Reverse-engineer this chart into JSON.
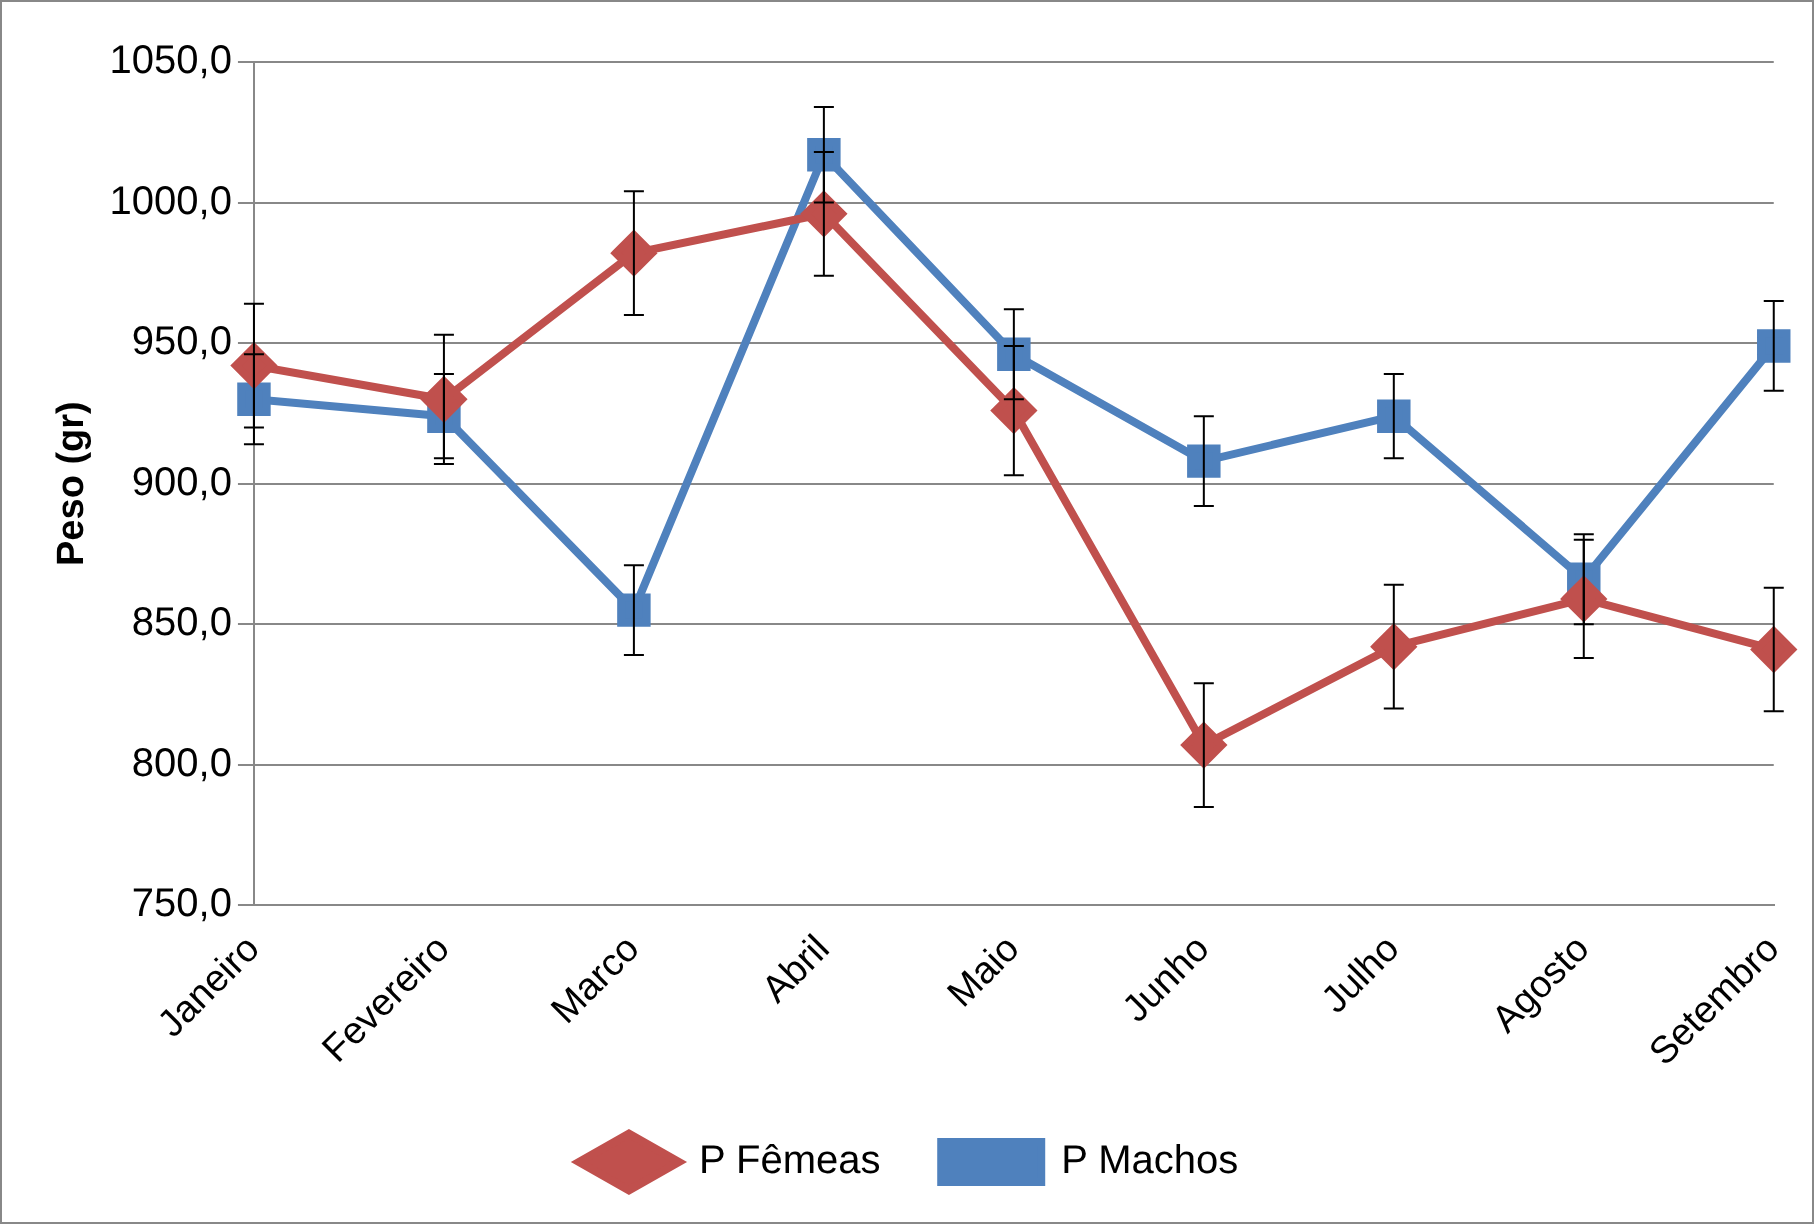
{
  "chart_data": {
    "type": "line",
    "ylabel": "Peso (gr)",
    "categories": [
      "Janeiro",
      "Fevereiro",
      "Marco",
      "Abril",
      "Maio",
      "Junho",
      "Julho",
      "Agosto",
      "Setembro"
    ],
    "series": [
      {
        "name": "P Fêmeas",
        "color": "#c0504d",
        "marker": "diamond",
        "values": [
          942,
          930,
          982,
          996,
          926,
          807,
          842,
          859,
          841
        ],
        "errors": [
          22,
          23,
          22,
          22,
          23,
          22,
          22,
          21,
          22
        ]
      },
      {
        "name": "P Machos",
        "color": "#4f81bd",
        "marker": "square",
        "values": [
          930,
          924,
          855,
          1017,
          946,
          908,
          924,
          866,
          949
        ],
        "errors": [
          16,
          15,
          16,
          17,
          16,
          16,
          15,
          16,
          16
        ]
      }
    ],
    "ylim": [
      750,
      1050
    ],
    "yticks": [
      {
        "value": 750,
        "label": "750,0"
      },
      {
        "value": 800,
        "label": "800,0"
      },
      {
        "value": 850,
        "label": "850,0"
      },
      {
        "value": 900,
        "label": "900,0"
      },
      {
        "value": 950,
        "label": "950,0"
      },
      {
        "value": 1000,
        "label": "1000,0"
      },
      {
        "value": 1050,
        "label": "1050,0"
      }
    ],
    "grid": "y",
    "legend": "bottom",
    "line_style": "solid"
  }
}
